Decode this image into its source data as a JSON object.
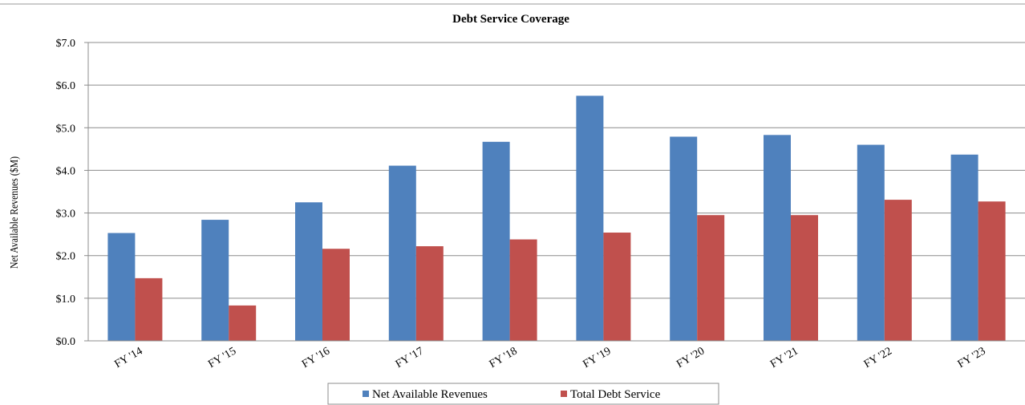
{
  "chart_data": {
    "type": "bar",
    "title": "Debt Service Coverage",
    "ylabel": "Net Available Revenues ($M)",
    "xlabel": "",
    "categories": [
      "FY '14",
      "FY '15",
      "FY '16",
      "FY '17",
      "FY '18",
      "FY '19",
      "FY '20",
      "FY '21",
      "FY '22",
      "FY '23"
    ],
    "ylim": [
      0,
      7
    ],
    "yticks": [
      "$0.0",
      "$1.0",
      "$2.0",
      "$3.0",
      "$4.0",
      "$5.0",
      "$6.0",
      "$7.0"
    ],
    "grid": true,
    "legend_position": "bottom",
    "series": [
      {
        "name": "Net Available Revenues",
        "color": "#4f81bd",
        "values": [
          2.53,
          2.84,
          3.25,
          4.11,
          4.67,
          5.75,
          4.79,
          4.83,
          4.6,
          4.37
        ]
      },
      {
        "name": "Total Debt Service",
        "color": "#c0504d",
        "values": [
          1.47,
          0.83,
          2.16,
          2.22,
          2.38,
          2.54,
          2.95,
          2.95,
          3.31,
          3.27
        ]
      }
    ]
  }
}
